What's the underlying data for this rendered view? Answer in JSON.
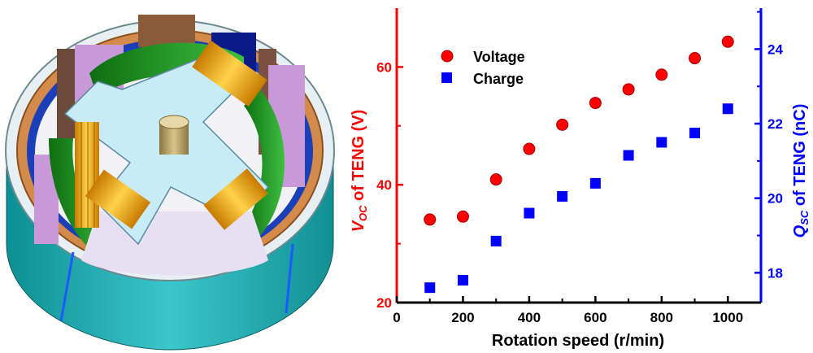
{
  "colors": {
    "voltage": "#ff0000",
    "charge": "#0000ff",
    "left_axis": "#ff0000",
    "right_axis": "#0000ff",
    "bottom_axis": "#000000"
  },
  "chart_data": {
    "type": "scatter",
    "x": [
      100,
      200,
      300,
      400,
      500,
      600,
      700,
      800,
      900,
      1000
    ],
    "xlabel": "Rotation speed (r/min)",
    "xlim": [
      0,
      1100
    ],
    "xticks": [
      "0",
      "200",
      "400",
      "600",
      "800",
      "1000"
    ],
    "ylabel_left": {
      "main": "V",
      "sub": "OC",
      "rest": " of TENG (V)"
    },
    "ylabel_right": {
      "main": "Q",
      "sub": "SC",
      "rest": " of TENG (nC)"
    },
    "ylim_left": [
      20,
      70
    ],
    "yticks_left": [
      "20",
      "40",
      "60"
    ],
    "ylim_right": [
      17.2,
      25.1
    ],
    "yticks_right": [
      "18",
      "20",
      "22",
      "24"
    ],
    "legend_position": "top-left",
    "series": [
      {
        "name": "Voltage",
        "axis": "left",
        "marker": "circle",
        "values": [
          34.1,
          34.6,
          40.9,
          46.1,
          50.2,
          53.9,
          56.2,
          58.7,
          61.5,
          64.3
        ]
      },
      {
        "name": "Charge",
        "axis": "right",
        "marker": "square",
        "values": [
          17.6,
          17.8,
          18.85,
          19.6,
          20.05,
          20.4,
          21.15,
          21.5,
          21.75,
          22.4
        ]
      }
    ]
  }
}
